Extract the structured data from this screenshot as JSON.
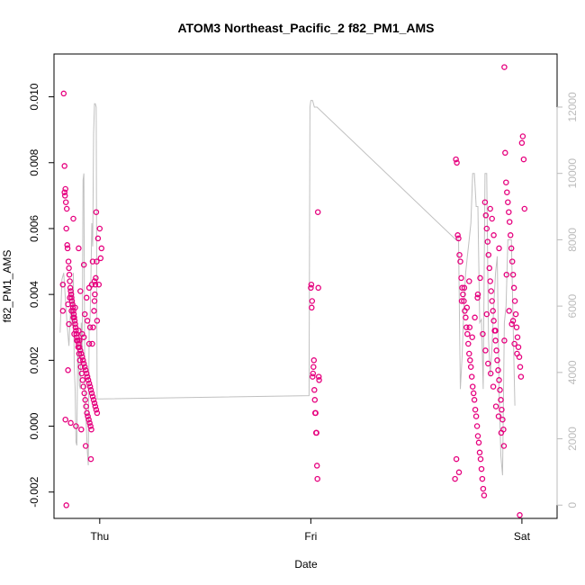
{
  "chart_data": {
    "type": "scatter",
    "title": "ATOM3 Northeast_Pacific_2 f82_PM1_AMS",
    "xlabel": "Date",
    "ylabel": "f82_PM1_AMS",
    "x_tick_labels": [
      "Thu",
      "Fri",
      "Sat"
    ],
    "x_ticks_hours": [
      0,
      24,
      48
    ],
    "xlim_hours": [
      -5.2,
      52.0
    ],
    "ylim": [
      -0.0028,
      0.0113
    ],
    "y_ticks": [
      -0.002,
      0.0,
      0.002,
      0.004,
      0.006,
      0.008,
      0.01
    ],
    "y_tick_labels": [
      "-0.002",
      "0.000",
      "0.002",
      "0.004",
      "0.006",
      "0.008",
      "0.010"
    ],
    "y2lim": [
      -400,
      13600
    ],
    "y2_ticks": [
      0,
      2000,
      4000,
      6000,
      8000,
      10000,
      12000
    ],
    "y2_tick_labels": [
      "0",
      "2000",
      "4000",
      "6000",
      "8000",
      "10000",
      "12000"
    ],
    "colors": {
      "points": "#e6007e",
      "altitude_line": "#c0c0c0",
      "axis": "#000000",
      "right_axis": "#bbbbbb"
    },
    "series": [
      {
        "type": "scatter",
        "x_hours": [
          -4.2,
          -4.0,
          -3.9,
          -3.8,
          -3.7,
          -3.5,
          -3.4,
          -3.3,
          -3.2,
          -3.1,
          -3.0,
          -2.9,
          -2.8,
          -2.7,
          -2.6,
          -2.5,
          -2.4,
          -2.3,
          -2.2,
          -2.1,
          -2.0,
          -1.9,
          -1.8,
          -1.7,
          -1.6,
          -1.5,
          -1.4,
          -1.3,
          -1.2,
          -1.1,
          -1.0,
          -0.9,
          -0.8,
          -0.7,
          -0.6,
          -0.5,
          -0.4,
          -0.3,
          -4.1,
          -3.95,
          -3.85,
          -3.75,
          -3.65,
          -3.55,
          -3.45,
          -3.35,
          -3.25,
          -3.15,
          -3.05,
          -2.95,
          -2.85,
          -2.75,
          -2.65,
          -2.55,
          -2.45,
          -2.35,
          -2.25,
          -2.15,
          -2.05,
          -1.95,
          -1.85,
          -1.75,
          -1.65,
          -1.55,
          -1.45,
          -1.35,
          -1.25,
          -1.15,
          -1.05,
          -0.95,
          -0.85,
          -0.75,
          -0.65,
          -0.55,
          -0.45,
          -0.35,
          -3.6,
          -3.0,
          -2.4,
          -1.8,
          -1.2,
          -0.6,
          -3.9,
          -3.3,
          -2.7,
          -2.1,
          -1.5,
          -0.9,
          -0.3,
          -4.2,
          -3.6,
          -3.0,
          -2.4,
          -1.8,
          -1.2,
          -0.6,
          -3.5,
          -2.9,
          -2.3,
          -1.7,
          -1.1,
          -0.5,
          -4.0,
          -3.4,
          -2.8,
          -2.2,
          -1.6,
          -1.0,
          -0.4,
          0.0,
          -0.2,
          -0.8,
          -1.4,
          -2.0,
          -2.6,
          -3.2,
          -3.8,
          0.2,
          0.1,
          -0.1
        ],
        "y": [
          0.0043,
          0.0079,
          0.0072,
          0.006,
          0.0055,
          0.0048,
          0.0044,
          0.0041,
          0.0039,
          0.0037,
          0.0035,
          0.0033,
          0.0031,
          0.0029,
          0.0027,
          0.0026,
          0.0025,
          0.0024,
          0.0023,
          0.0022,
          0.0021,
          0.002,
          0.0019,
          0.0018,
          0.0017,
          0.0016,
          0.0015,
          0.0014,
          0.0013,
          0.0012,
          0.0011,
          0.001,
          0.0009,
          0.0008,
          0.0007,
          0.0006,
          0.0005,
          0.0004,
          0.0101,
          0.007,
          0.0068,
          0.0066,
          0.0054,
          0.005,
          0.0046,
          0.0042,
          0.004,
          0.0038,
          0.0036,
          0.0034,
          0.0032,
          0.003,
          0.0028,
          0.0026,
          0.0024,
          0.0022,
          0.002,
          0.0018,
          0.0016,
          0.0014,
          0.0012,
          0.001,
          0.0008,
          0.0006,
          0.0004,
          0.0003,
          0.0002,
          0.0001,
          0.0,
          -0.0001,
          0.0025,
          0.003,
          0.0035,
          0.004,
          0.0045,
          0.005,
          0.0017,
          0.0063,
          0.0054,
          0.0049,
          0.0042,
          0.0038,
          0.0002,
          0.0001,
          0.0,
          -0.0001,
          0.0039,
          0.0043,
          0.0032,
          0.0035,
          0.0037,
          0.0033,
          0.0029,
          0.0027,
          0.0025,
          0.0044,
          0.0031,
          0.0028,
          0.0026,
          0.0034,
          0.003,
          0.0043,
          0.0071,
          0.0039,
          0.0036,
          0.0041,
          -0.0006,
          -0.001,
          0.0065,
          0.006,
          0.0057,
          0.005,
          0.0032,
          0.0028,
          0.0026,
          0.0035,
          -0.0024,
          0.0054,
          0.0051,
          0.0043
        ]
      },
      {
        "type": "scatter",
        "x_hours": [
          0.0,
          0.05,
          0.1,
          0.15,
          0.2,
          0.25,
          0.3,
          0.35,
          0.4,
          0.45,
          0.5,
          0.55,
          0.6,
          0.65,
          0.7,
          0.75,
          0.8,
          0.85,
          0.9,
          0.95
        ],
        "y_offset_hours": 24,
        "y": [
          0.0042,
          0.0043,
          0.0036,
          0.0038,
          0.0015,
          0.0016,
          0.0018,
          0.002,
          0.0011,
          0.0008,
          0.0004,
          0.0004,
          -0.0002,
          -0.0002,
          -0.0012,
          -0.0016,
          0.0065,
          0.0042,
          0.0015,
          0.0014
        ]
      },
      {
        "type": "scatter",
        "x_hours": [
          -7.6,
          -7.5,
          -7.4,
          -7.3,
          -7.2,
          -7.1,
          -7.0,
          -6.9,
          -6.8,
          -6.7,
          -6.6,
          -6.5,
          -6.4,
          -6.3,
          -6.2,
          -6.1,
          -6.0,
          -5.9,
          -5.8,
          -5.7,
          -5.6,
          -5.5,
          -5.4,
          -5.3,
          -5.2,
          -5.1,
          -5.0,
          -4.9,
          -4.8,
          -4.7,
          -4.6,
          -4.5,
          -4.4,
          -4.3,
          -4.2,
          -4.1,
          -4.0,
          -3.9,
          -3.8,
          -3.7,
          -3.6,
          -3.5,
          -3.4,
          -3.3,
          -3.2,
          -3.1,
          -3.0,
          -2.9,
          -2.8,
          -2.7,
          -2.6,
          -2.5,
          -2.4,
          -2.3,
          -2.2,
          -2.1,
          -2.0,
          -1.9,
          -1.8,
          -1.7,
          -1.6,
          -1.5,
          -1.4,
          -1.3,
          -1.2,
          -1.1,
          -1.0,
          -0.9,
          -0.8,
          -0.7,
          -0.6,
          -0.5,
          -0.4,
          -0.3,
          -0.2,
          -0.1,
          0.0,
          0.1,
          0.2,
          0.3,
          -7.45,
          -7.15,
          -6.85,
          -6.55,
          -6.25,
          -5.95,
          -5.65,
          -5.35,
          -5.05,
          -4.75,
          -4.45,
          -4.15,
          -3.85,
          -3.55,
          -3.25,
          -2.95,
          -2.65,
          -2.35,
          -2.05,
          -1.75,
          -1.45,
          -1.15,
          -0.85,
          -0.55,
          -0.25,
          -6.0,
          -5.0,
          -4.0,
          -3.0,
          -2.0,
          -1.0,
          -3.6,
          -3.4,
          -3.2,
          -2.6
        ],
        "y_offset_hours": 48,
        "y": [
          -0.0016,
          0.0081,
          0.008,
          0.0058,
          0.0057,
          0.0052,
          0.005,
          0.0045,
          0.0042,
          0.004,
          0.0038,
          0.0035,
          0.0033,
          0.003,
          0.0028,
          0.0025,
          0.0022,
          0.002,
          0.0018,
          0.0015,
          0.0012,
          0.001,
          0.0008,
          0.0005,
          0.0003,
          0.0,
          -0.0003,
          -0.0005,
          -0.0008,
          -0.001,
          -0.0013,
          -0.0016,
          -0.0019,
          -0.0021,
          0.0068,
          0.0064,
          0.006,
          0.0056,
          0.0052,
          0.0048,
          0.0044,
          0.0041,
          0.0038,
          0.0035,
          0.0032,
          0.0029,
          0.0026,
          0.0023,
          0.002,
          0.0017,
          0.0014,
          0.0011,
          0.0008,
          0.0005,
          0.0002,
          -0.0001,
          0.0109,
          0.0083,
          0.0074,
          0.0071,
          0.0068,
          0.0065,
          0.0062,
          0.0058,
          0.0054,
          0.005,
          0.0046,
          0.0042,
          0.0038,
          0.0034,
          0.003,
          0.0027,
          0.0024,
          0.0021,
          0.0018,
          0.0015,
          0.0086,
          0.0088,
          0.0081,
          0.0066,
          -0.001,
          -0.0014,
          0.0038,
          0.0042,
          0.0036,
          0.003,
          0.0027,
          0.0033,
          0.0039,
          0.0045,
          0.0028,
          0.0023,
          0.0019,
          0.0016,
          0.0012,
          0.0006,
          0.0003,
          -0.0002,
          -0.0006,
          0.0046,
          0.0035,
          0.0031,
          0.0025,
          0.0022,
          -0.0027,
          0.0044,
          0.004,
          0.0034,
          0.0029,
          0.0026,
          0.0032,
          0.0066,
          0.0063,
          0.0058,
          0.0054
        ]
      }
    ],
    "altitude_line": {
      "axis": "right",
      "x_hours": [
        -4.5,
        -4.3,
        -4.1,
        -3.9,
        -3.7,
        -3.5,
        -3.3,
        -3.1,
        -3.0,
        -2.9,
        -2.8,
        -2.7,
        -2.6,
        -2.5,
        -2.4,
        -2.3,
        -2.2,
        -2.1,
        -2.0,
        -1.9,
        -1.8,
        -1.7,
        -1.6,
        -1.5,
        -1.4,
        -1.3,
        -1.2,
        -1.1,
        -1.0,
        -0.9,
        -0.8,
        -0.7,
        -0.6,
        -0.5,
        -0.4,
        -0.3,
        -0.2,
        -0.1,
        0.0,
        23.8,
        24.0,
        24.1,
        24.2,
        24.3,
        24.4,
        24.5,
        24.6,
        24.7,
        40.5,
        40.8,
        41.0,
        41.2,
        41.4,
        41.6,
        41.8,
        42.0,
        42.2,
        42.4,
        42.6,
        42.8,
        43.0,
        43.2,
        43.4,
        43.6,
        43.8,
        44.0,
        44.2,
        44.4,
        44.6,
        44.8,
        45.0,
        45.2,
        45.4,
        45.6,
        45.8,
        46.0,
        46.2,
        46.4,
        46.6,
        46.8,
        47.0,
        47.2,
        23.9
      ],
      "y_m": [
        5200,
        6800,
        7000,
        6200,
        5400,
        4800,
        6000,
        5400,
        7000,
        4200,
        3500,
        1900,
        1800,
        5000,
        4200,
        3600,
        3500,
        5500,
        4600,
        9800,
        10000,
        3400,
        2800,
        2200,
        1600,
        1200,
        5500,
        5600,
        6800,
        8500,
        7800,
        11200,
        12100,
        12100,
        12000,
        3200,
        3200,
        3200,
        3200,
        3300,
        12200,
        12200,
        12200,
        12100,
        12000,
        12000,
        12000,
        12000,
        8000,
        8000,
        3500,
        4500,
        6000,
        7000,
        7500,
        8000,
        8500,
        10000,
        10000,
        9000,
        9000,
        5500,
        5600,
        3500,
        10000,
        10000,
        5000,
        3900,
        4800,
        6000,
        7000,
        7500,
        3500,
        1500,
        900,
        5500,
        6000,
        8000,
        8000,
        8000,
        5500,
        3000,
        12000
      ]
    }
  }
}
